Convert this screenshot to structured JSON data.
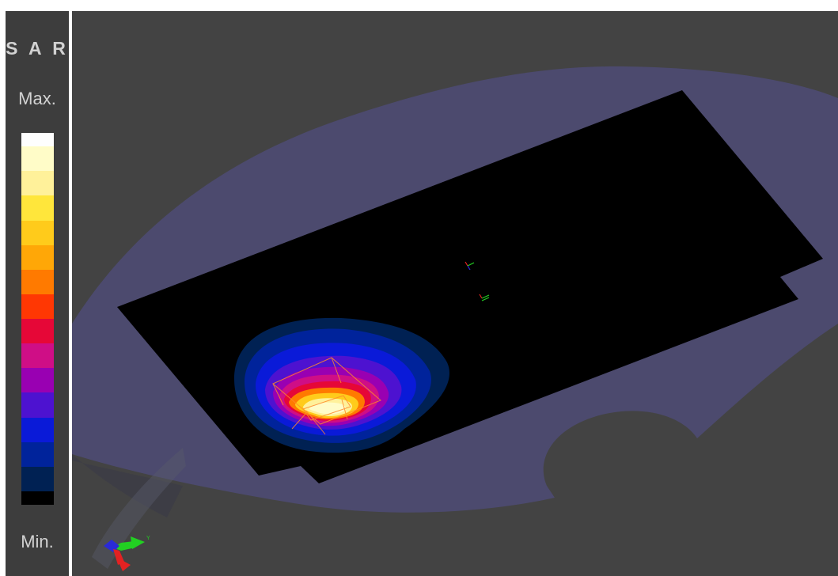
{
  "legend": {
    "title": "S A R",
    "max_label": "Max.",
    "min_label": "Min.",
    "colors": [
      "#fefefe",
      "#fffcc8",
      "#fff19a",
      "#ffe63b",
      "#ffcb1b",
      "#ffa707",
      "#ff7a00",
      "#ff3703",
      "#e60737",
      "#cf0e86",
      "#9900b2",
      "#4d12d0",
      "#0a1ad8",
      "#00239b",
      "#002153",
      "#000000"
    ]
  },
  "viewport": {
    "background": "#434343",
    "body_color": "#4d4b75",
    "plane_color": "#000000",
    "sar_levels": [
      "#002153",
      "#00239b",
      "#0a1ad8",
      "#4d12d0",
      "#9900b2",
      "#cf0e86",
      "#e60737",
      "#ff7a00",
      "#ffcb1b",
      "#fff19a",
      "#fffcc8"
    ],
    "axes_triad": {
      "x_color": "#e32222",
      "y_color": "#22d022",
      "z_color": "#2a2ad8"
    }
  }
}
